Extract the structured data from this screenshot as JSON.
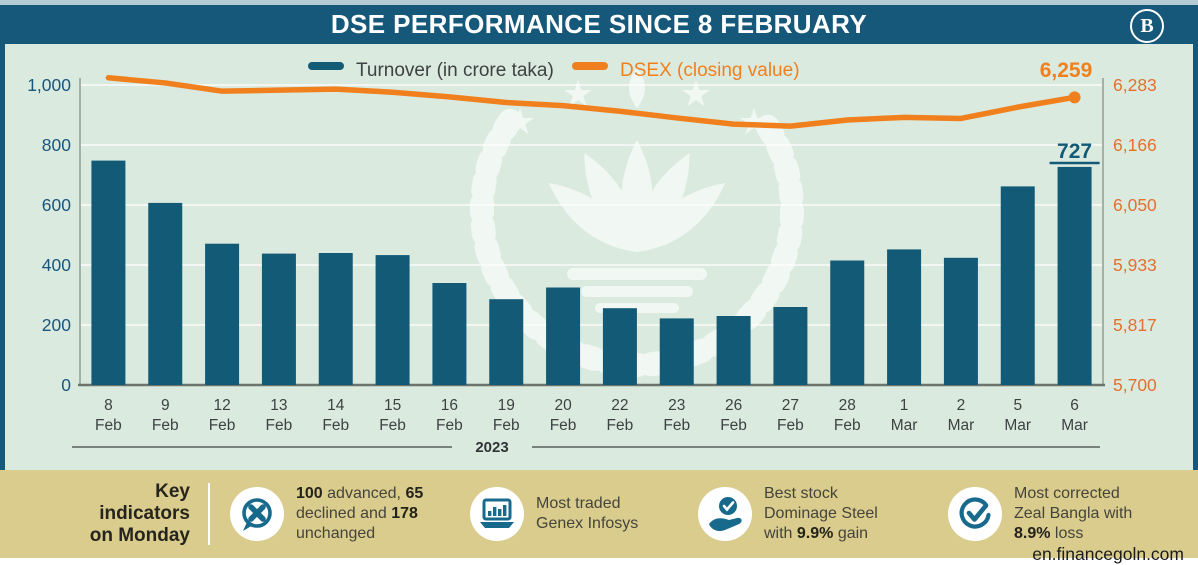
{
  "header": {
    "title": "DSE PERFORMANCE SINCE 8 FEBRUARY",
    "logo_glyph": "B"
  },
  "legend": [
    {
      "label": "Turnover (in crore taka)",
      "color": "#135a77"
    },
    {
      "label": "DSEX (closing value)",
      "color": "#f0801e"
    }
  ],
  "chart_data": {
    "type": "bar+line",
    "title": "DSE PERFORMANCE SINCE 8 FEBRUARY",
    "categories": [
      "8 Feb",
      "9 Feb",
      "12 Feb",
      "13 Feb",
      "14 Feb",
      "15 Feb",
      "16 Feb",
      "19 Feb",
      "20 Feb",
      "22 Feb",
      "23 Feb",
      "26 Feb",
      "27 Feb",
      "28 Feb",
      "1 Mar",
      "2 Mar",
      "5 Mar",
      "6 Mar"
    ],
    "year_label": "2023",
    "series": [
      {
        "name": "Turnover (in crore taka)",
        "type": "bar",
        "axis": "left",
        "color": "#135a77",
        "values": [
          748,
          607,
          471,
          438,
          440,
          433,
          340,
          286,
          325,
          256,
          222,
          230,
          260,
          415,
          452,
          424,
          662,
          727
        ]
      },
      {
        "name": "DSEX (closing value)",
        "type": "line",
        "axis": "right",
        "color": "#f0801e",
        "values": [
          6297,
          6287,
          6271,
          6273,
          6275,
          6269,
          6260,
          6249,
          6243,
          6232,
          6219,
          6207,
          6203,
          6215,
          6220,
          6218,
          6240,
          6259
        ]
      }
    ],
    "left_axis": {
      "min": 0,
      "max": 1000,
      "tick_values": [
        0,
        200,
        400,
        600,
        800,
        1000
      ],
      "tick_labels": [
        "0",
        "200",
        "400",
        "600",
        "800",
        "1,000"
      ],
      "color": "#19567c"
    },
    "right_axis": {
      "min": 5700,
      "max": 6283,
      "tick_labels": [
        "5,700",
        "5,817",
        "5,933",
        "6,050",
        "6,166",
        "6,283"
      ],
      "color": "#e4702f"
    },
    "annotations": {
      "last_bar_value": "727",
      "last_line_value": "6,259"
    },
    "grid": true,
    "legend_position": "top"
  },
  "key_indicators": {
    "heading_lines": [
      "Key",
      "indicators",
      "on Monday"
    ],
    "items": [
      {
        "icon": "advance-decline-icon",
        "lines": [
          "100 advanced, 65",
          "declined and 178",
          "unchanged"
        ],
        "bold": [
          "100",
          "65",
          "178"
        ]
      },
      {
        "icon": "most-traded-icon",
        "lines": [
          "Most traded",
          "Genex Infosys"
        ],
        "bold": []
      },
      {
        "icon": "best-stock-icon",
        "lines": [
          "Best stock",
          "Dominage Steel",
          "with 9.9% gain"
        ],
        "bold": [
          "9.9%"
        ]
      },
      {
        "icon": "most-corrected-icon",
        "lines": [
          "Most corrected",
          "Zeal Bangla with",
          "8.9% loss"
        ],
        "bold": [
          "8.9%"
        ]
      }
    ]
  },
  "footer": {
    "watermark": "en.financegoln.com"
  },
  "colors": {
    "header_bg": "#15587a",
    "top_strip": "#b5ccd4",
    "chart_bg": "#dbeadf",
    "band_bg": "#d9cc8d",
    "bar": "#135a77",
    "line": "#f0801e",
    "grid": "#ffffff",
    "axis_line": "#97a29a",
    "x_label": "#3c4242",
    "icon_teal": "#176a8c"
  }
}
